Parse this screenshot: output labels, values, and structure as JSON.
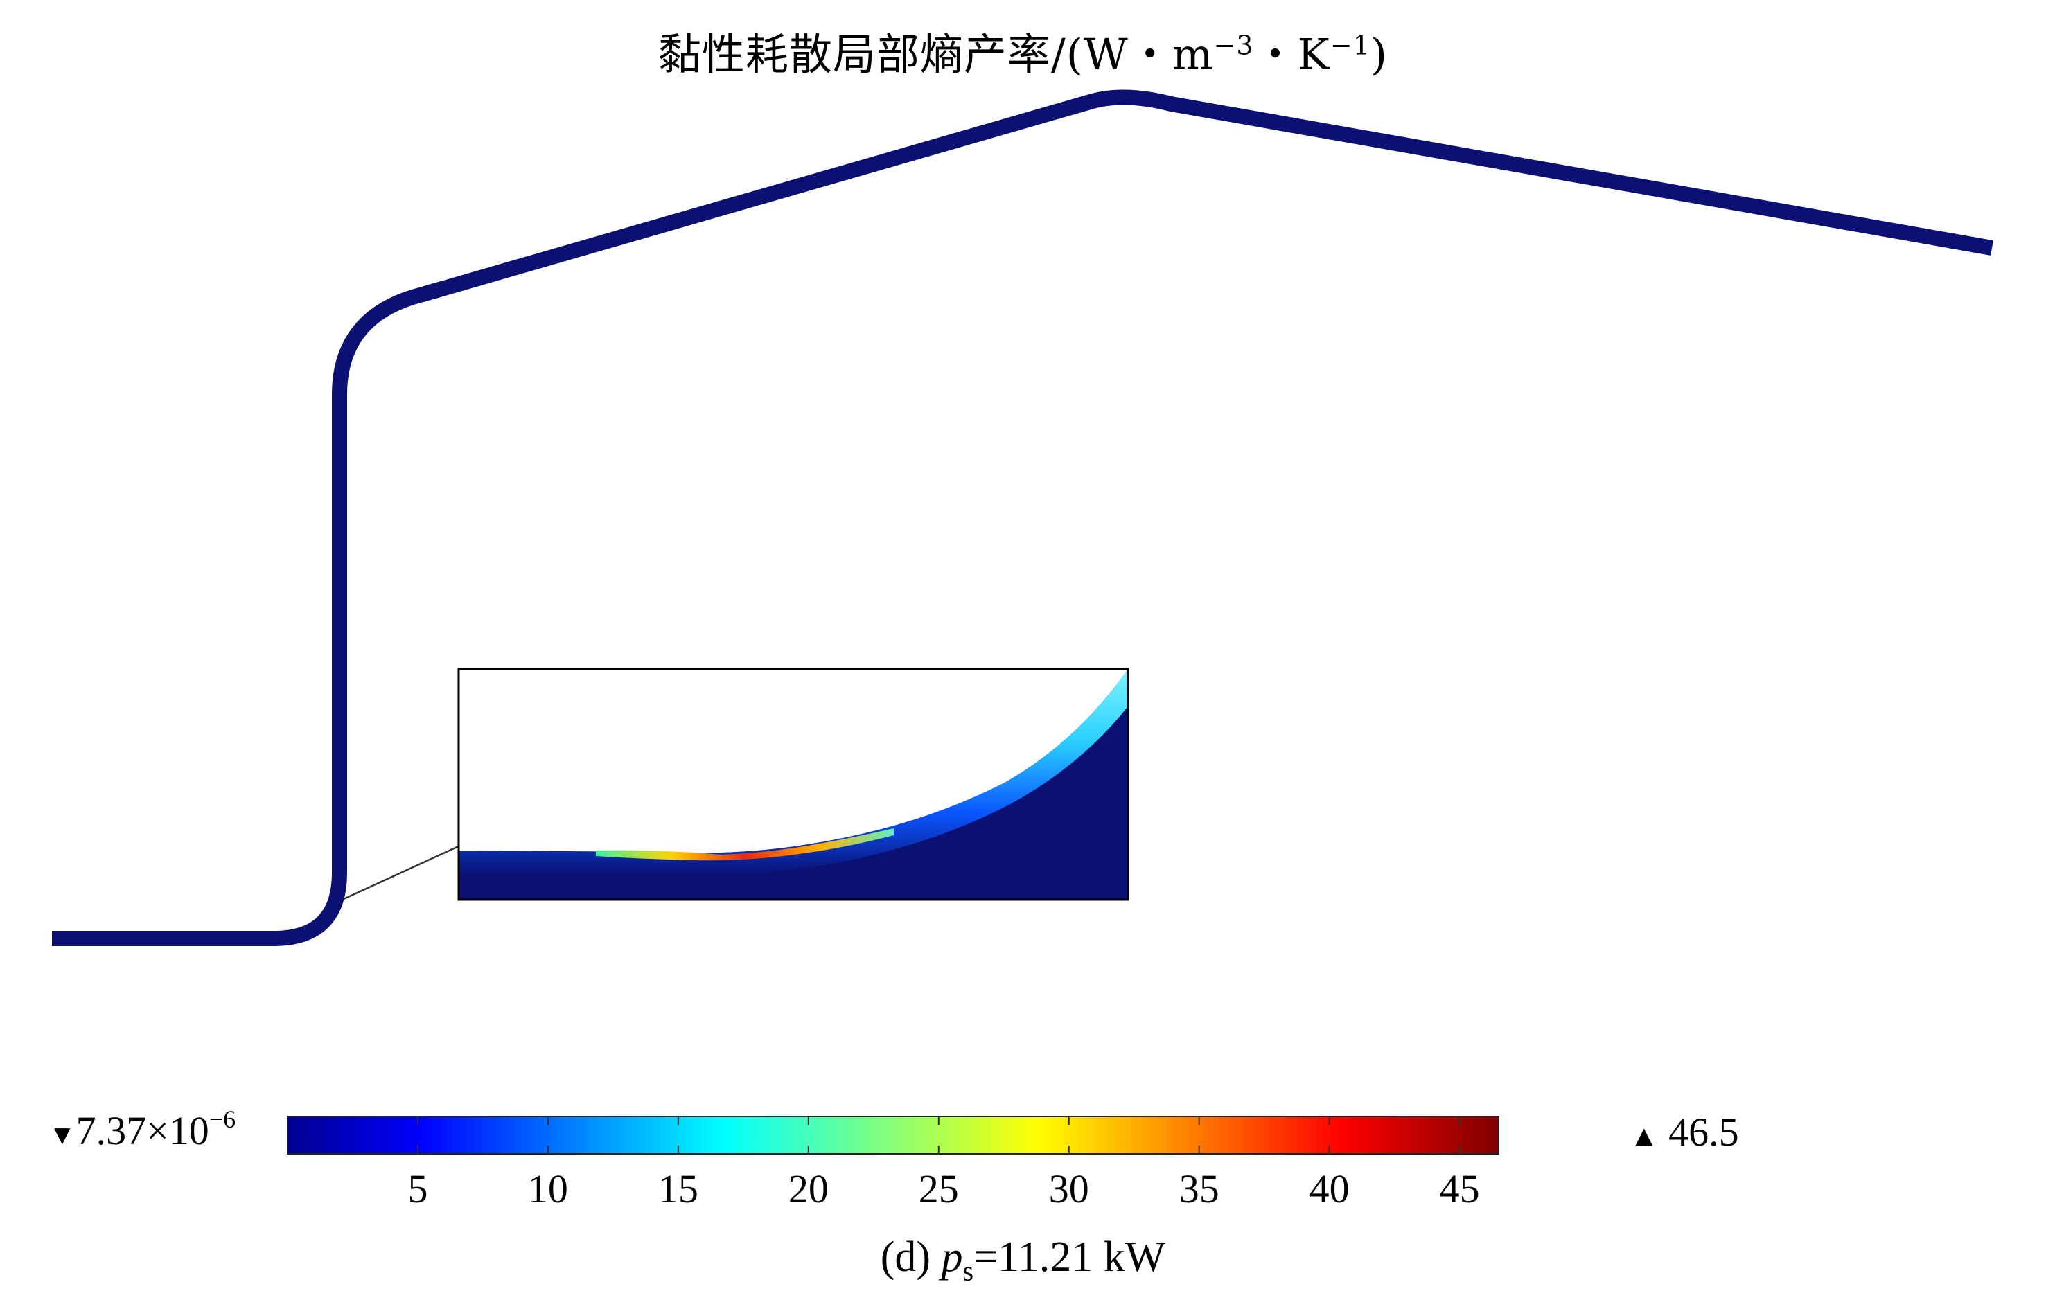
{
  "chart_data": {
    "type": "heatmap",
    "title": {
      "main": "黏性耗散局部熵产率/(W・m",
      "exp1": "−3",
      "mid": "・K",
      "exp2": "−1",
      "end": ")"
    },
    "colorbar": {
      "min_marker": "▼",
      "min_value_base": "7.37×10",
      "min_value_exp": "−6",
      "max_marker": "▲",
      "max_value": "46.5",
      "min": 7.37e-06,
      "max": 46.5,
      "ticks": [
        5,
        10,
        15,
        20,
        25,
        30,
        35,
        40,
        45
      ],
      "colormap": "jet"
    },
    "geometry_color": "#0a1172",
    "caption": {
      "prefix": "(d) ",
      "var": "p",
      "sub": "s",
      "suffix": "=11.21 kW"
    }
  }
}
